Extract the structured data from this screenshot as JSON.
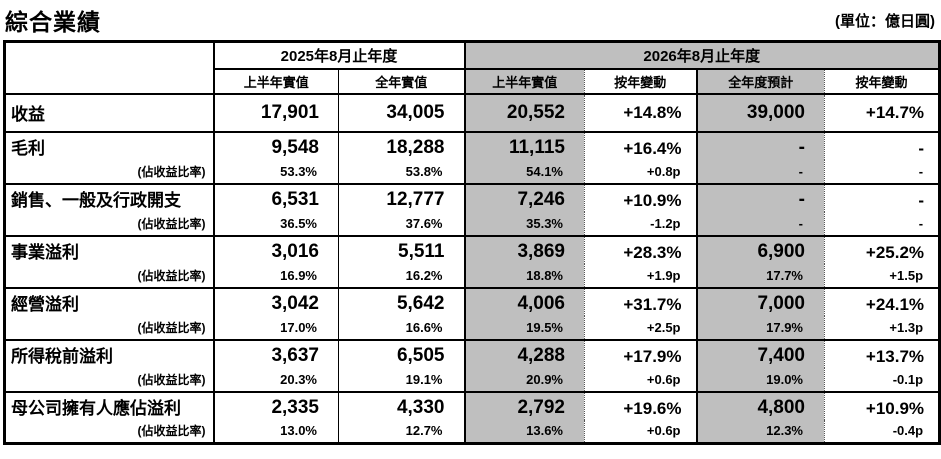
{
  "page": {
    "title": "綜合業績",
    "unit_label": "(單位：億日圓)"
  },
  "table": {
    "groups": [
      {
        "label": "2025年8月止年度"
      },
      {
        "label": "2026年8月止年度"
      }
    ],
    "sub_headers": [
      "上半年實值",
      "全年實值",
      "上半年實值",
      "按年變動",
      "全年度預計",
      "按年變動"
    ],
    "ratio_label": "(佔收益比率)",
    "rows": [
      {
        "label": "收益",
        "values": [
          "17,901",
          "34,005",
          "20,552",
          "+14.8%",
          "39,000",
          "+14.7%"
        ],
        "ratios": null
      },
      {
        "label": "毛利",
        "values": [
          "9,548",
          "18,288",
          "11,115",
          "+16.4%",
          "-",
          "-"
        ],
        "ratios": [
          "53.3%",
          "53.8%",
          "54.1%",
          "+0.8p",
          "-",
          "-"
        ]
      },
      {
        "label": "銷售、一般及行政開支",
        "values": [
          "6,531",
          "12,777",
          "7,246",
          "+10.9%",
          "-",
          "-"
        ],
        "ratios": [
          "36.5%",
          "37.6%",
          "35.3%",
          "-1.2p",
          "-",
          "-"
        ]
      },
      {
        "label": "事業溢利",
        "values": [
          "3,016",
          "5,511",
          "3,869",
          "+28.3%",
          "6,900",
          "+25.2%"
        ],
        "ratios": [
          "16.9%",
          "16.2%",
          "18.8%",
          "+1.9p",
          "17.7%",
          "+1.5p"
        ]
      },
      {
        "label": "經營溢利",
        "values": [
          "3,042",
          "5,642",
          "4,006",
          "+31.7%",
          "7,000",
          "+24.1%"
        ],
        "ratios": [
          "17.0%",
          "16.6%",
          "19.5%",
          "+2.5p",
          "17.9%",
          "+1.3p"
        ]
      },
      {
        "label": "所得稅前溢利",
        "values": [
          "3,637",
          "6,505",
          "4,288",
          "+17.9%",
          "7,400",
          "+13.7%"
        ],
        "ratios": [
          "20.3%",
          "19.1%",
          "20.9%",
          "+0.6p",
          "19.0%",
          "-0.1p"
        ]
      },
      {
        "label": "母公司擁有人應佔溢利",
        "values": [
          "2,335",
          "4,330",
          "2,792",
          "+19.6%",
          "4,800",
          "+10.9%"
        ],
        "ratios": [
          "13.0%",
          "12.7%",
          "13.6%",
          "+0.6p",
          "12.3%",
          "-0.4p"
        ]
      }
    ],
    "colors": {
      "highlight_fill": "#bfbfbf",
      "border": "#000000",
      "background": "#ffffff"
    }
  }
}
